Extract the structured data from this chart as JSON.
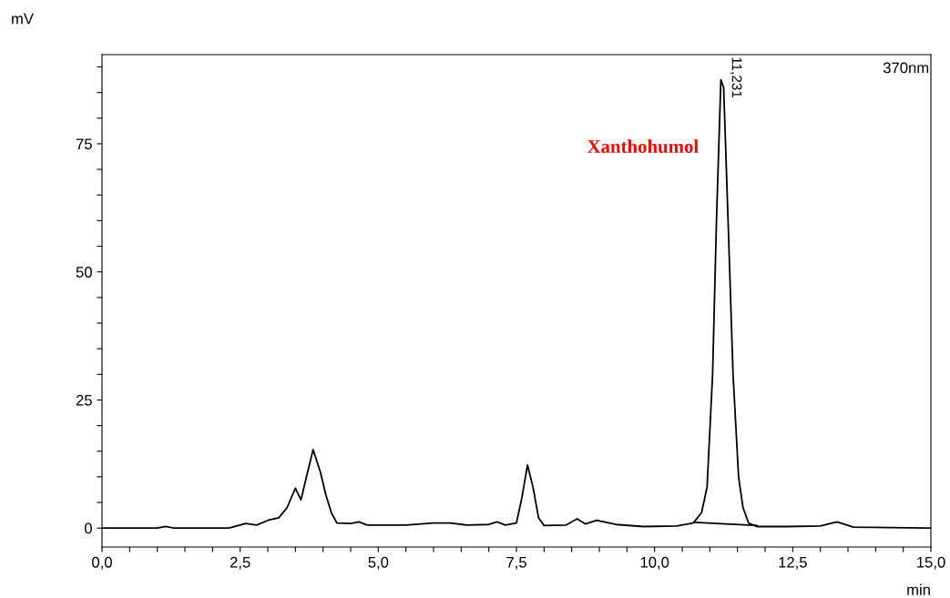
{
  "chart_data": {
    "type": "line",
    "xlabel": "min",
    "ylabel": "mV",
    "series": [
      {
        "color": "#000000",
        "x": [
          0,
          1.0,
          1.15,
          1.3,
          2.3,
          2.6,
          2.8,
          3.0,
          3.2,
          3.35,
          3.5,
          3.6,
          3.7,
          3.82,
          3.95,
          4.05,
          4.15,
          4.25,
          4.5,
          4.65,
          4.8,
          5.5,
          6.0,
          6.3,
          6.6,
          7.0,
          7.15,
          7.3,
          7.5,
          7.6,
          7.7,
          7.8,
          7.9,
          8.0,
          8.4,
          8.6,
          8.75,
          8.95,
          9.3,
          9.8,
          10.4,
          10.7,
          10.85,
          10.95,
          11.05,
          11.12,
          11.2,
          11.25,
          11.33,
          11.42,
          11.52,
          11.6,
          11.7,
          11.85,
          12.4,
          13.0,
          13.3,
          13.6,
          15.0
        ],
        "values": [
          0,
          0,
          0.3,
          0,
          0,
          0.9,
          0.6,
          1.5,
          2,
          4,
          7.8,
          5.5,
          10,
          15.3,
          11,
          6.5,
          3,
          1,
          0.9,
          1.2,
          0.6,
          0.6,
          1,
          1,
          0.6,
          0.7,
          1.2,
          0.6,
          1,
          6,
          12.3,
          8,
          2,
          0.5,
          0.6,
          1.8,
          0.8,
          1.5,
          0.7,
          0.3,
          0.4,
          1,
          3,
          8,
          30,
          60,
          87.5,
          86,
          60,
          30,
          10,
          4,
          1,
          0.3,
          0.3,
          0.4,
          1.2,
          0.2,
          0
        ]
      },
      {
        "color": "#000000",
        "x": [
          10.72,
          11.85
        ],
        "values": [
          1.1,
          0.5
        ]
      }
    ],
    "xlim": [
      0,
      15
    ],
    "ylim": [
      -3.7,
      92.4
    ],
    "xticks": [
      {
        "value": 0,
        "label": "0,0"
      },
      {
        "value": 0.5,
        "label": null
      },
      {
        "value": 1,
        "label": null
      },
      {
        "value": 1.5,
        "label": null
      },
      {
        "value": 2,
        "label": null
      },
      {
        "value": 2.5,
        "label": "2,5"
      },
      {
        "value": 3,
        "label": null
      },
      {
        "value": 3.5,
        "label": null
      },
      {
        "value": 4,
        "label": null
      },
      {
        "value": 4.5,
        "label": null
      },
      {
        "value": 5,
        "label": "5,0"
      },
      {
        "value": 5.5,
        "label": null
      },
      {
        "value": 6,
        "label": null
      },
      {
        "value": 6.5,
        "label": null
      },
      {
        "value": 7,
        "label": null
      },
      {
        "value": 7.5,
        "label": "7,5"
      },
      {
        "value": 8,
        "label": null
      },
      {
        "value": 8.5,
        "label": null
      },
      {
        "value": 9,
        "label": null
      },
      {
        "value": 9.5,
        "label": null
      },
      {
        "value": 10,
        "label": "10,0"
      },
      {
        "value": 10.5,
        "label": null
      },
      {
        "value": 11,
        "label": null
      },
      {
        "value": 11.5,
        "label": null
      },
      {
        "value": 12,
        "label": null
      },
      {
        "value": 12.5,
        "label": "12,5"
      },
      {
        "value": 13,
        "label": null
      },
      {
        "value": 13.5,
        "label": null
      },
      {
        "value": 14,
        "label": null
      },
      {
        "value": 14.5,
        "label": null
      },
      {
        "value": 15,
        "label": "15,0"
      }
    ],
    "yticks": [
      0,
      {
        "value": 5,
        "label": null
      },
      {
        "value": 10,
        "label": null
      },
      {
        "value": 15,
        "label": null
      },
      {
        "value": 20,
        "label": null
      },
      25,
      {
        "value": 30,
        "label": null
      },
      {
        "value": 35,
        "label": null
      },
      {
        "value": 40,
        "label": null
      },
      {
        "value": 45,
        "label": null
      },
      50,
      {
        "value": 55,
        "label": null
      },
      {
        "value": 60,
        "label": null
      },
      {
        "value": 65,
        "label": null
      },
      {
        "value": 70,
        "label": null
      },
      75,
      {
        "value": 80,
        "label": null
      },
      {
        "value": 85,
        "label": null
      },
      {
        "value": 90,
        "label": null
      }
    ],
    "annotations": [
      {
        "text": "11,231",
        "x": 11.231,
        "y": 87.5
      },
      "Xanthohumol",
      "370nm"
    ],
    "grid": false,
    "legend": false,
    "marker": "none",
    "line_style": "solid"
  }
}
